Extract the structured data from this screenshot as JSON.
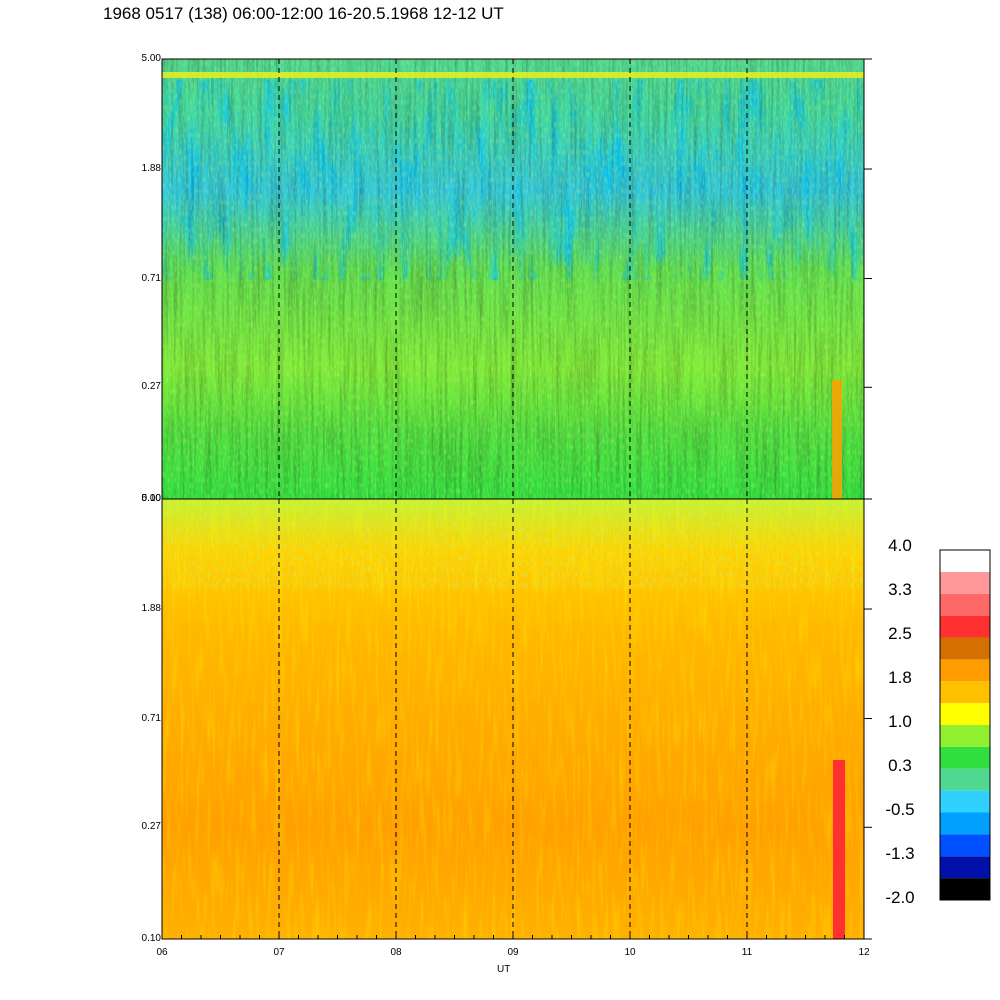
{
  "title": "1968 0517 (138) 06:00-12:00 16-20.5.1968  12-12 UT",
  "colors": {
    "palette": [
      "#000000",
      "#0010a8",
      "#0050ff",
      "#00a0ff",
      "#30d0ff",
      "#50d890",
      "#30e040",
      "#90f030",
      "#ffff00",
      "#ffc000",
      "#ff9c00",
      "#d47000",
      "#ff3030",
      "#ff6868",
      "#ff9898",
      "#ffffff"
    ]
  },
  "chart_data": [
    {
      "type": "heatmap",
      "panel": "top",
      "x_ticks": [
        "06",
        "07",
        "08",
        "09",
        "10",
        "11",
        "12"
      ],
      "x_values": [
        6,
        7,
        8,
        9,
        10,
        11,
        12
      ],
      "y_ticks": [
        "5.00",
        "1.88",
        "0.71",
        "0.27",
        "0.10"
      ],
      "y_values": [
        5.0,
        1.88,
        0.71,
        0.27,
        0.1
      ],
      "ylim": [
        0.1,
        5.0
      ],
      "xlim": [
        6,
        12
      ],
      "yscale": "log",
      "grid": "dashed vertical lines at each hour",
      "dominant_levels": "green (0.3) to blue (-0.5 to -1.3), yellow band near 5.00"
    },
    {
      "type": "heatmap",
      "panel": "bottom",
      "x_ticks": [
        "06",
        "07",
        "08",
        "09",
        "10",
        "11",
        "12"
      ],
      "x_values": [
        6,
        7,
        8,
        9,
        10,
        11,
        12
      ],
      "y_ticks": [
        "5.00",
        "1.88",
        "0.71",
        "0.27",
        "0.10"
      ],
      "y_values": [
        5.0,
        1.88,
        0.71,
        0.27,
        0.1
      ],
      "ylim": [
        0.1,
        5.0
      ],
      "xlim": [
        6,
        12
      ],
      "yscale": "log",
      "xlabel": "UT",
      "grid": "dashed vertical lines at each hour",
      "dominant_levels": "orange (1.8) to yellow (1.0), red streak near 11:45"
    }
  ],
  "colorbar": {
    "labels": [
      "4.0",
      "3.3",
      "2.5",
      "1.8",
      "1.0",
      "0.3",
      "-0.5",
      "-1.3",
      "-2.0"
    ],
    "range": [
      -2.0,
      4.0
    ]
  }
}
